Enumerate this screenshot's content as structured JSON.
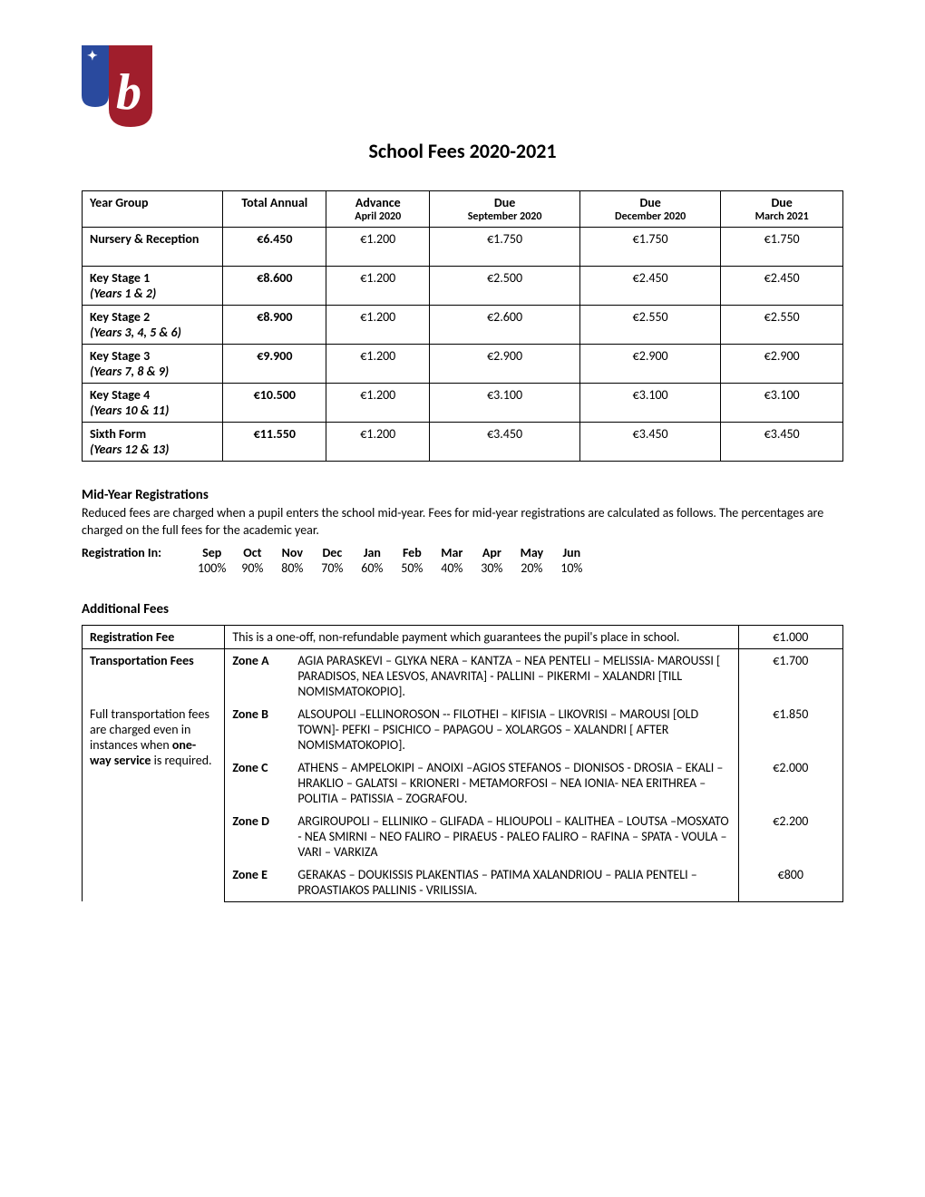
{
  "title": "School Fees 2020-2021",
  "logo_colors": {
    "blue": "#2a4a9e",
    "red": "#a01e2c",
    "white": "#ffffff"
  },
  "fees_table": {
    "headers": {
      "year_group": "Year Group",
      "total_annual": "Total Annual",
      "advance": "Advance",
      "advance_sub": "April 2020",
      "due1": "Due",
      "due1_sub": "September 2020",
      "due2": "Due",
      "due2_sub": "December 2020",
      "due3": "Due",
      "due3_sub": "March 2021"
    },
    "rows": [
      {
        "name": "Nursery & Reception",
        "sub": "",
        "annual": "€6.450",
        "advance": "€1.200",
        "d1": "€1.750",
        "d2": "€1.750",
        "d3": "€1.750"
      },
      {
        "name": "Key Stage 1",
        "sub": "(Years 1 & 2)",
        "annual": "€8.600",
        "advance": "€1.200",
        "d1": "€2.500",
        "d2": "€2.450",
        "d3": "€2.450"
      },
      {
        "name": "Key Stage 2",
        "sub": "(Years 3, 4, 5 & 6)",
        "annual": "€8.900",
        "advance": "€1.200",
        "d1": "€2.600",
        "d2": "€2.550",
        "d3": "€2.550"
      },
      {
        "name": "Key Stage 3",
        "sub": "(Years 7, 8 & 9)",
        "annual": "€9.900",
        "advance": "€1.200",
        "d1": "€2.900",
        "d2": "€2.900",
        "d3": "€2.900"
      },
      {
        "name": "Key Stage 4",
        "sub": "(Years 10 & 11)",
        "annual": "€10.500",
        "advance": "€1.200",
        "d1": "€3.100",
        "d2": "€3.100",
        "d3": "€3.100"
      },
      {
        "name": "Sixth Form",
        "sub": "(Years 12 & 13)",
        "annual": "€11.550",
        "advance": "€1.200",
        "d1": "€3.450",
        "d2": "€3.450",
        "d3": "€3.450"
      }
    ]
  },
  "midyear": {
    "heading": "Mid-Year Registrations",
    "text": "Reduced fees are charged when a pupil enters the school mid-year. Fees for mid-year registrations are calculated as follows. The percentages are charged on the full fees for the academic year.",
    "label": "Registration In:",
    "months": [
      "Sep",
      "Oct",
      "Nov",
      "Dec",
      "Jan",
      "Feb",
      "Mar",
      "Apr",
      "May",
      "Jun"
    ],
    "pcts": [
      "100%",
      "90%",
      "80%",
      "70%",
      "60%",
      "50%",
      "40%",
      "30%",
      "20%",
      "10%"
    ]
  },
  "additional": {
    "heading": "Additional Fees",
    "reg_fee_label": "Registration Fee",
    "reg_fee_desc": "This is a one-off, non-refundable payment which guarantees the pupil's place in school.",
    "reg_fee_amount": "€1.000",
    "trans_label": "Transportation Fees",
    "trans_note1": "Full transportation fees are charged even in instances when ",
    "trans_note_bold": "one-way service",
    "trans_note2": " is required.",
    "zones": [
      {
        "name": "Zone A",
        "desc": "AGIA PARASKEVI – GLYKA NERA – KANTZA – NEA PENTELI – MELISSIA- MAROUSSI [ PARADISOS, NEA LESVOS, ANAVRITA] - PALLINI – PIKERMI – XALANDRI [TILL NOMISMATOKOPIO].",
        "amount": "€1.700"
      },
      {
        "name": "Zone B",
        "desc": "ALSOUPOLI –ELLINOROSON -- FILOTHEI – KIFISIA – LIKOVRISI – MAROUSI [OLD TOWN]- PEFKI – PSICHICO – PAPAGOU – XOLARGOS – XALANDRI [ AFTER NOMISMATOKOPIO].",
        "amount": "€1.850"
      },
      {
        "name": "Zone C",
        "desc": "ATHENS – AMPELOKIPI – ANOIXI –AGIOS STEFANOS – DIONISOS - DROSIA – EKALI –HRAKLIO – GALATSI – KRIONERI - METAMORFOSI – NEA IONIA- NEA ERITHREA – POLITIA – PATISSIA – ZOGRAFOU.",
        "amount": "€2.000"
      },
      {
        "name": "Zone D",
        "desc": "ARGIROUPOLI – ELLINIKO – GLIFADA – HLIOUPOLI – KALITHEA – LOUTSA –MOSXATO - NEA SMIRNI – NEO FALIRO – PIRAEUS - PALEO FALIRO – RAFINA – SPATA - VOULA – VARI – VARKIZA",
        "amount": "€2.200"
      },
      {
        "name": "Zone E",
        "desc": "GERAKAS – DOUKISSIS PLAKENTIAS – PATIMA XALANDRIOU – PALIA PENTELI – PROASTIAKOS PALLINIS - VRILISSIA.",
        "amount": "€800"
      }
    ]
  }
}
